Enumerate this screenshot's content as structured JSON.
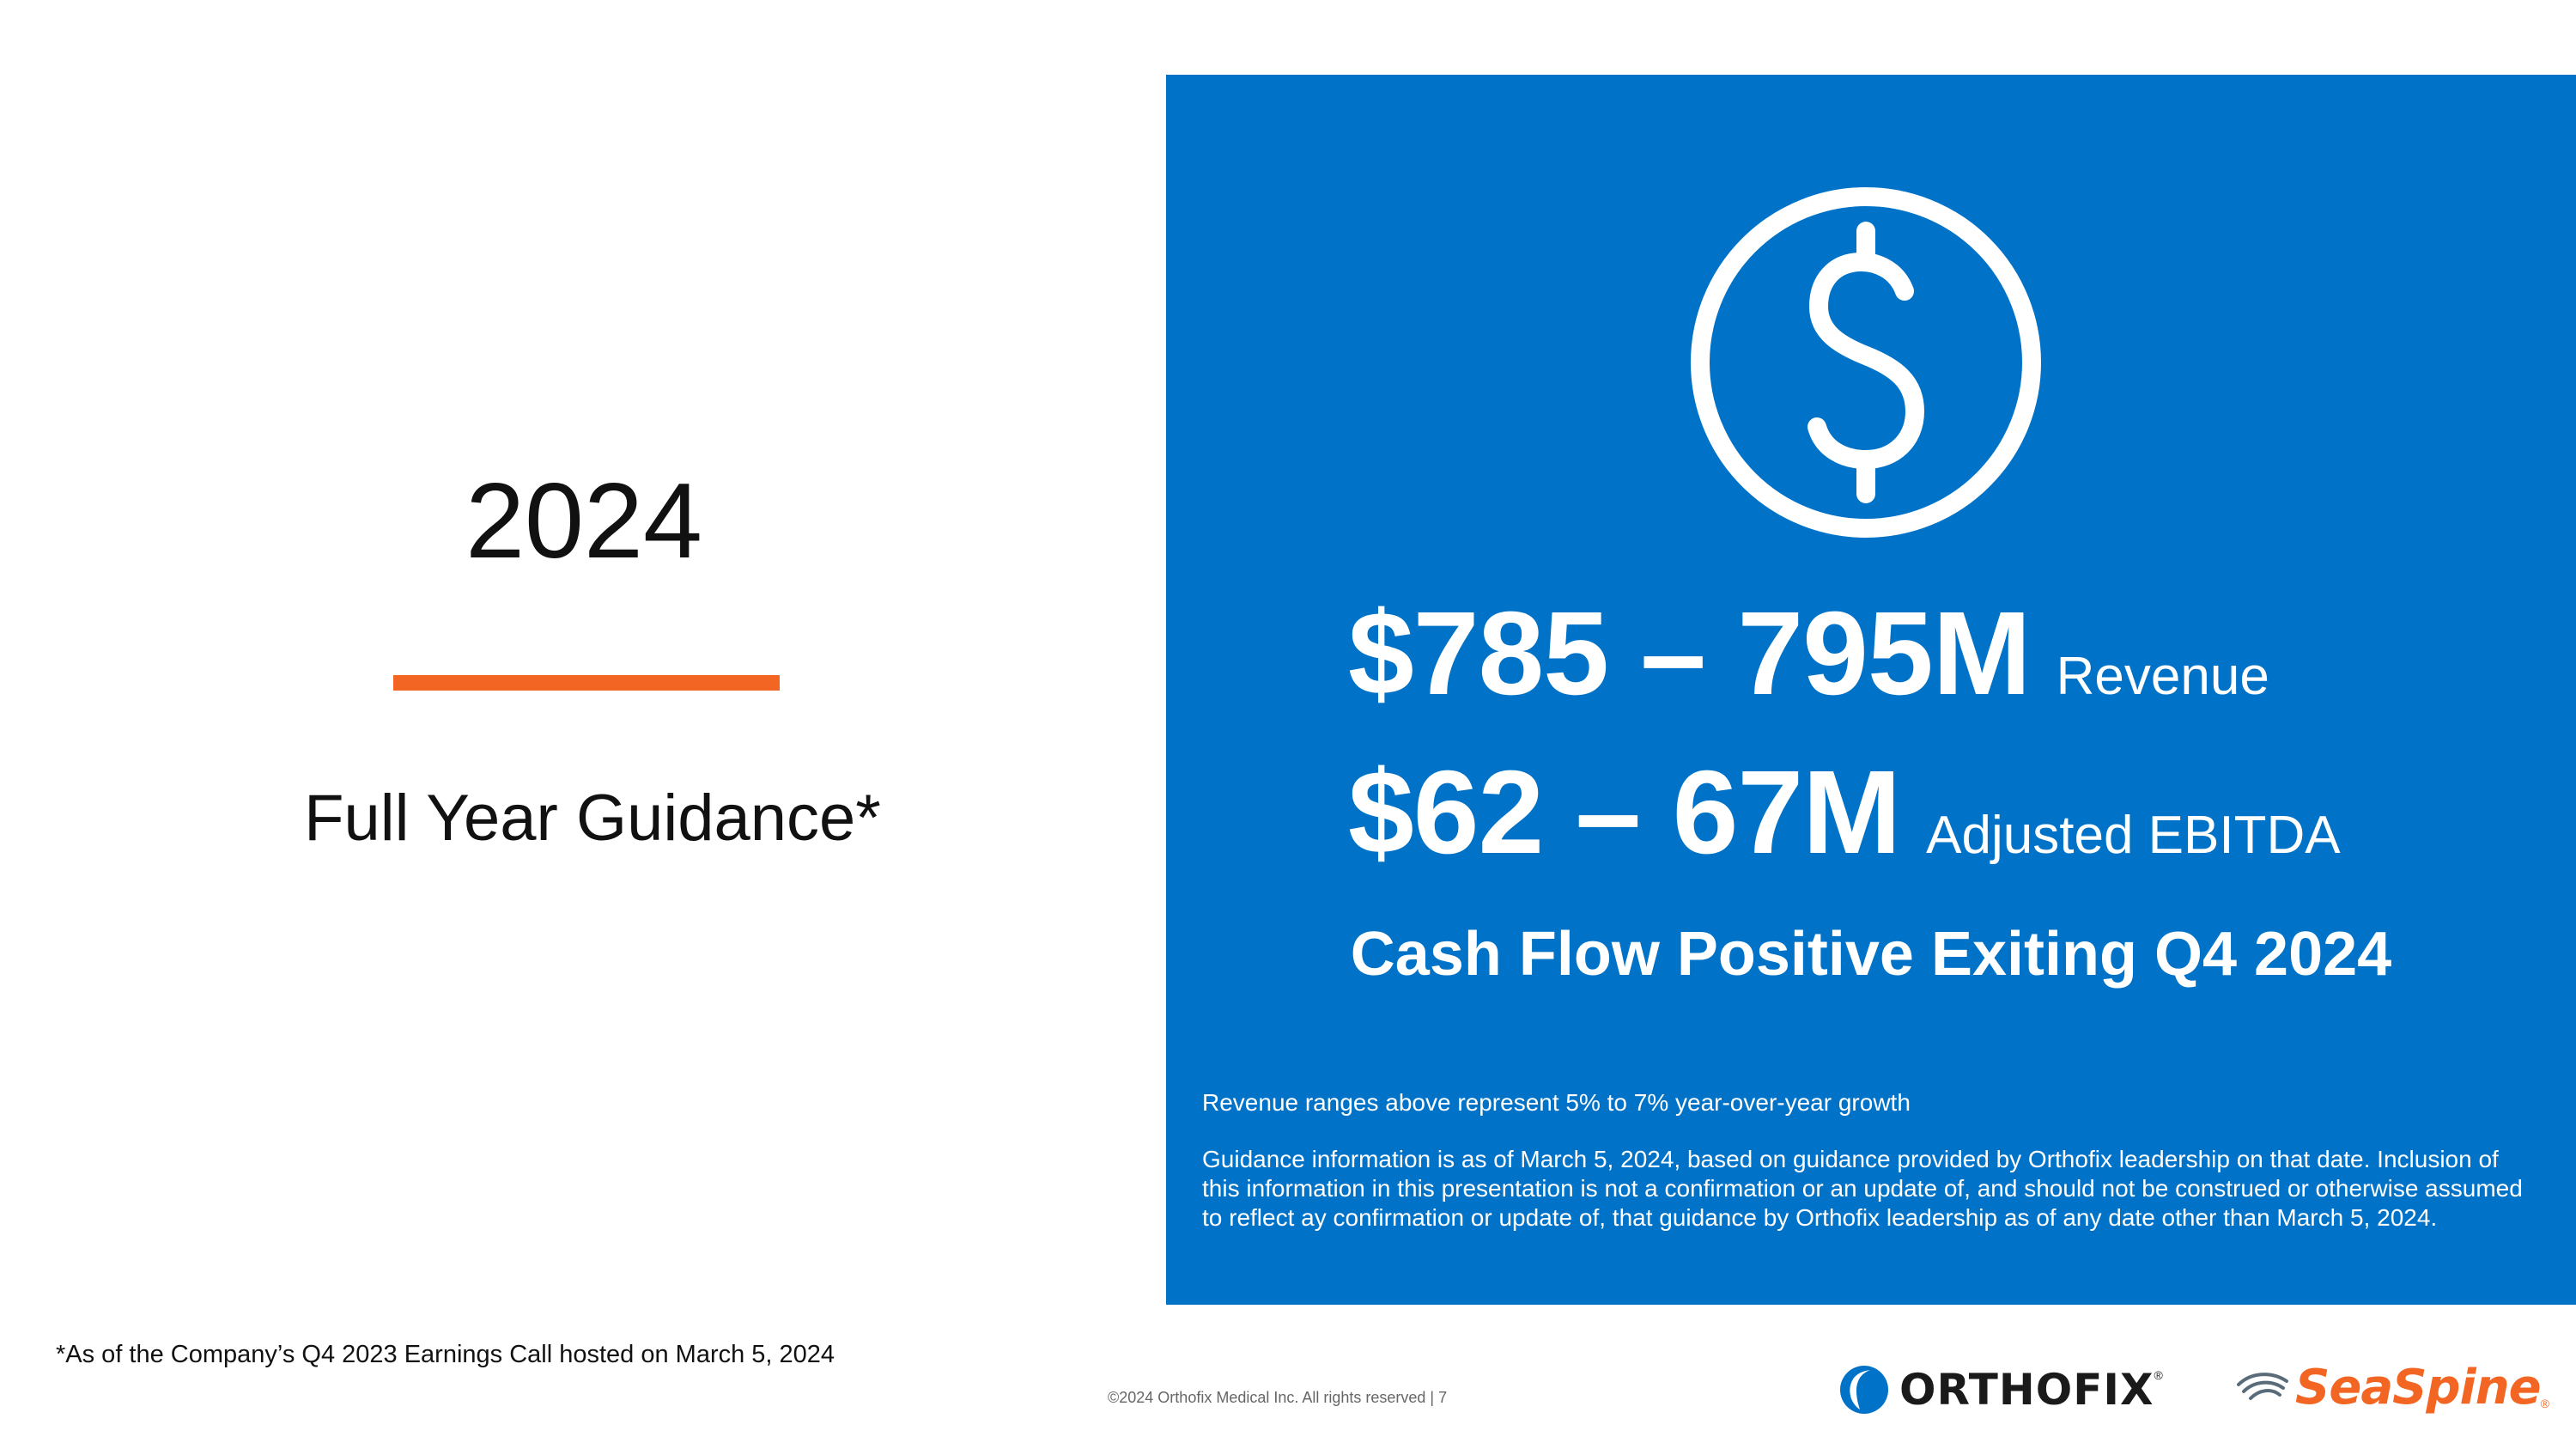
{
  "left": {
    "year": "2024",
    "subtitle": "Full Year Guidance*",
    "footnote": "*As of the Company’s Q4 2023 Earnings Call hosted on March 5, 2024"
  },
  "panel": {
    "icon": "dollar-circle-icon",
    "revenue": {
      "value": "$785 – 795M",
      "label": "Revenue"
    },
    "ebitda": {
      "value": "$62 – 67M",
      "label": "Adjusted EBITDA"
    },
    "cashflow": "Cash Flow Positive Exiting Q4 2024",
    "note_growth": "Revenue ranges above represent 5% to 7% year-over-year growth",
    "note_guidance": "Guidance information is as of March 5, 2024, based on guidance provided by Orthofix leadership on that date. Inclusion of this information in this presentation is not a confirmation or an update of, and should not be construed or otherwise assumed to reflect ay confirmation or update of, that guidance by Orthofix leadership as of any date other than March 5, 2024."
  },
  "footer": {
    "copyright": "©2024 Orthofix Medical Inc. All rights reserved  |  7",
    "logo_orthofix": "ORTHOFIX",
    "logo_seaspine": "SeaSpine",
    "registered": "®"
  },
  "colors": {
    "panel_blue": "#0073c8",
    "accent_orange": "#f26522"
  }
}
